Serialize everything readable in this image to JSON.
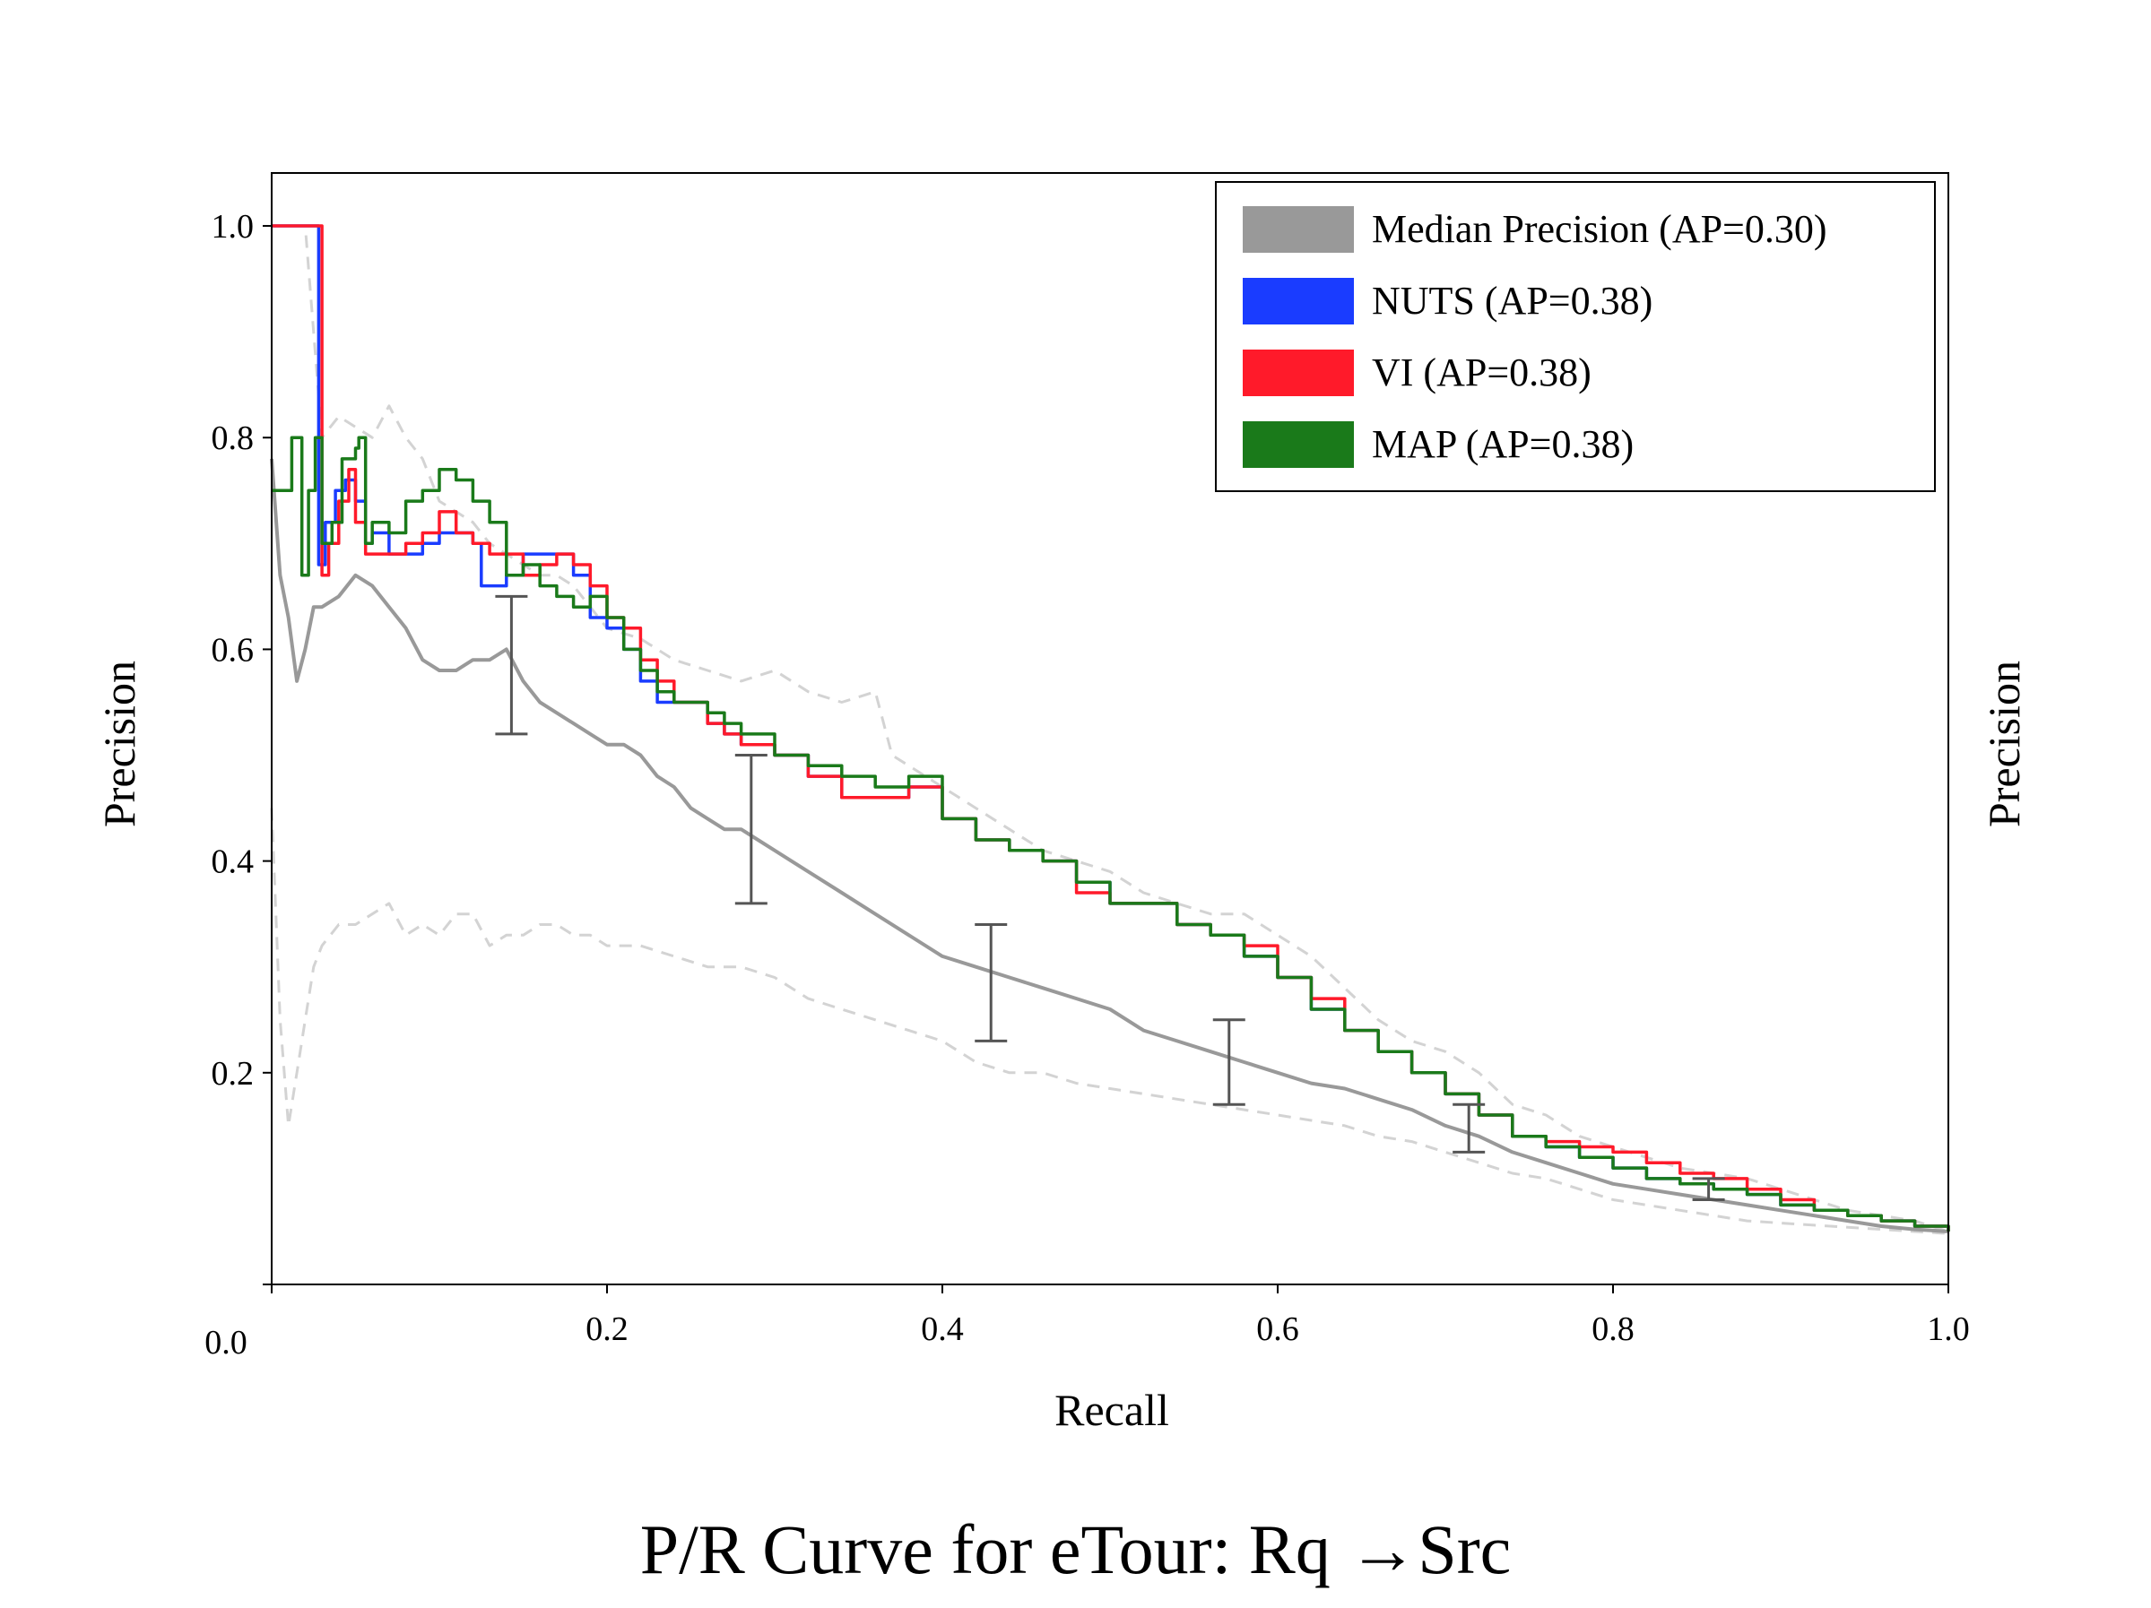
{
  "chart_data": {
    "type": "line",
    "title": "P/R Curve for eTour: Rq →Src",
    "xlabel": "Recall",
    "ylabel": "Precision",
    "ylabel_right": "Precision",
    "xlim": [
      0.0,
      1.0
    ],
    "ylim": [
      0.0,
      1.05
    ],
    "x_ticks": [
      {
        "value": 0.0,
        "label": "0.0"
      },
      {
        "value": 0.2,
        "label": "0.2"
      },
      {
        "value": 0.4,
        "label": "0.4"
      },
      {
        "value": 0.6,
        "label": "0.6"
      },
      {
        "value": 0.8,
        "label": "0.8"
      },
      {
        "value": 1.0,
        "label": "1.0"
      }
    ],
    "y_ticks": [
      {
        "value": 0.2,
        "label": "0.2"
      },
      {
        "value": 0.4,
        "label": "0.4"
      },
      {
        "value": 0.6,
        "label": "0.6"
      },
      {
        "value": 0.8,
        "label": "0.8"
      },
      {
        "value": 1.0,
        "label": "1.0"
      }
    ],
    "grid": false,
    "legend_position": "top-right",
    "series": [
      {
        "name": "Median Precision (AP=0.30)",
        "color": "#999999",
        "style": "solid",
        "x": [
          0.0,
          0.005,
          0.01,
          0.015,
          0.02,
          0.025,
          0.03,
          0.04,
          0.05,
          0.06,
          0.07,
          0.08,
          0.09,
          0.1,
          0.11,
          0.12,
          0.13,
          0.14,
          0.15,
          0.16,
          0.17,
          0.18,
          0.19,
          0.2,
          0.21,
          0.22,
          0.23,
          0.24,
          0.25,
          0.26,
          0.27,
          0.28,
          0.29,
          0.3,
          0.32,
          0.34,
          0.36,
          0.38,
          0.4,
          0.42,
          0.44,
          0.46,
          0.48,
          0.5,
          0.52,
          0.54,
          0.56,
          0.58,
          0.6,
          0.62,
          0.64,
          0.66,
          0.68,
          0.7,
          0.72,
          0.74,
          0.76,
          0.78,
          0.8,
          0.82,
          0.84,
          0.86,
          0.88,
          0.9,
          0.92,
          0.94,
          0.96,
          0.98,
          1.0
        ],
        "y": [
          0.78,
          0.67,
          0.63,
          0.57,
          0.6,
          0.64,
          0.64,
          0.65,
          0.67,
          0.66,
          0.64,
          0.62,
          0.59,
          0.58,
          0.58,
          0.59,
          0.59,
          0.6,
          0.57,
          0.55,
          0.54,
          0.53,
          0.52,
          0.51,
          0.51,
          0.5,
          0.48,
          0.47,
          0.45,
          0.44,
          0.43,
          0.43,
          0.42,
          0.41,
          0.39,
          0.37,
          0.35,
          0.33,
          0.31,
          0.3,
          0.29,
          0.28,
          0.27,
          0.26,
          0.24,
          0.23,
          0.22,
          0.21,
          0.2,
          0.19,
          0.185,
          0.175,
          0.165,
          0.15,
          0.14,
          0.125,
          0.115,
          0.105,
          0.095,
          0.09,
          0.085,
          0.08,
          0.075,
          0.07,
          0.065,
          0.06,
          0.055,
          0.052,
          0.05
        ]
      },
      {
        "name": "NUTS (AP=0.38)",
        "color": "#1a3cff",
        "style": "solid",
        "x": [
          0.0,
          0.012,
          0.024,
          0.028,
          0.032,
          0.038,
          0.044,
          0.05,
          0.056,
          0.06,
          0.07,
          0.08,
          0.09,
          0.1,
          0.11,
          0.12,
          0.125,
          0.13,
          0.14,
          0.15,
          0.16,
          0.17,
          0.18,
          0.19,
          0.2,
          0.21,
          0.22,
          0.23,
          0.24,
          0.26,
          0.27,
          0.28,
          0.3,
          0.32,
          0.34,
          0.36,
          0.38,
          0.4,
          0.42,
          0.44,
          0.46,
          0.48,
          0.5,
          0.52,
          0.54,
          0.56,
          0.58,
          0.6,
          0.62,
          0.64,
          0.66,
          0.68,
          0.7,
          0.72,
          0.74,
          0.76,
          0.78,
          0.8,
          0.82,
          0.84,
          0.86,
          0.88,
          0.9,
          0.92,
          0.94,
          0.96,
          0.98,
          1.0
        ],
        "y": [
          1.0,
          1.0,
          1.0,
          0.68,
          0.72,
          0.75,
          0.76,
          0.74,
          0.7,
          0.71,
          0.69,
          0.69,
          0.7,
          0.71,
          0.71,
          0.7,
          0.66,
          0.66,
          0.67,
          0.69,
          0.69,
          0.69,
          0.67,
          0.63,
          0.62,
          0.6,
          0.57,
          0.55,
          0.55,
          0.53,
          0.52,
          0.51,
          0.5,
          0.48,
          0.46,
          0.46,
          0.47,
          0.44,
          0.42,
          0.41,
          0.4,
          0.38,
          0.36,
          0.36,
          0.34,
          0.33,
          0.31,
          0.29,
          0.26,
          0.24,
          0.22,
          0.2,
          0.18,
          0.16,
          0.14,
          0.13,
          0.12,
          0.11,
          0.1,
          0.095,
          0.09,
          0.085,
          0.075,
          0.07,
          0.065,
          0.06,
          0.055,
          0.05
        ]
      },
      {
        "name": "VI (AP=0.38)",
        "color": "#ff1a2a",
        "style": "solid",
        "x": [
          0.0,
          0.012,
          0.026,
          0.03,
          0.034,
          0.04,
          0.046,
          0.05,
          0.056,
          0.06,
          0.07,
          0.08,
          0.09,
          0.1,
          0.11,
          0.12,
          0.13,
          0.14,
          0.15,
          0.16,
          0.17,
          0.18,
          0.19,
          0.2,
          0.21,
          0.22,
          0.23,
          0.24,
          0.26,
          0.27,
          0.28,
          0.3,
          0.32,
          0.34,
          0.36,
          0.38,
          0.4,
          0.42,
          0.44,
          0.46,
          0.48,
          0.5,
          0.52,
          0.54,
          0.56,
          0.58,
          0.6,
          0.62,
          0.64,
          0.66,
          0.68,
          0.7,
          0.72,
          0.74,
          0.76,
          0.78,
          0.8,
          0.82,
          0.84,
          0.86,
          0.88,
          0.9,
          0.92,
          0.94,
          0.96,
          0.98,
          1.0
        ],
        "y": [
          1.0,
          1.0,
          1.0,
          0.67,
          0.7,
          0.74,
          0.77,
          0.72,
          0.69,
          0.69,
          0.69,
          0.7,
          0.71,
          0.73,
          0.71,
          0.7,
          0.69,
          0.69,
          0.67,
          0.68,
          0.69,
          0.68,
          0.66,
          0.63,
          0.62,
          0.59,
          0.57,
          0.55,
          0.53,
          0.52,
          0.51,
          0.5,
          0.48,
          0.46,
          0.46,
          0.47,
          0.44,
          0.42,
          0.41,
          0.4,
          0.37,
          0.36,
          0.36,
          0.34,
          0.33,
          0.32,
          0.29,
          0.27,
          0.24,
          0.22,
          0.2,
          0.18,
          0.16,
          0.14,
          0.135,
          0.13,
          0.125,
          0.115,
          0.105,
          0.1,
          0.09,
          0.08,
          0.07,
          0.065,
          0.06,
          0.055,
          0.05
        ]
      },
      {
        "name": "MAP (AP=0.38)",
        "color": "#1a7a1a",
        "style": "solid",
        "x": [
          0.0,
          0.008,
          0.012,
          0.018,
          0.022,
          0.026,
          0.03,
          0.036,
          0.042,
          0.05,
          0.052,
          0.056,
          0.06,
          0.07,
          0.08,
          0.09,
          0.1,
          0.11,
          0.12,
          0.13,
          0.14,
          0.15,
          0.16,
          0.17,
          0.18,
          0.19,
          0.2,
          0.21,
          0.22,
          0.23,
          0.24,
          0.26,
          0.27,
          0.28,
          0.3,
          0.32,
          0.34,
          0.36,
          0.38,
          0.4,
          0.42,
          0.44,
          0.46,
          0.48,
          0.5,
          0.52,
          0.54,
          0.56,
          0.58,
          0.6,
          0.62,
          0.64,
          0.66,
          0.68,
          0.7,
          0.72,
          0.74,
          0.76,
          0.78,
          0.8,
          0.82,
          0.84,
          0.86,
          0.88,
          0.9,
          0.92,
          0.94,
          0.96,
          0.98,
          1.0
        ],
        "y": [
          0.75,
          0.75,
          0.8,
          0.67,
          0.75,
          0.8,
          0.7,
          0.72,
          0.78,
          0.79,
          0.8,
          0.7,
          0.72,
          0.71,
          0.74,
          0.75,
          0.77,
          0.76,
          0.74,
          0.72,
          0.67,
          0.68,
          0.66,
          0.65,
          0.64,
          0.65,
          0.63,
          0.6,
          0.58,
          0.56,
          0.55,
          0.54,
          0.53,
          0.52,
          0.5,
          0.49,
          0.48,
          0.47,
          0.48,
          0.44,
          0.42,
          0.41,
          0.4,
          0.38,
          0.36,
          0.36,
          0.34,
          0.33,
          0.31,
          0.29,
          0.26,
          0.24,
          0.22,
          0.2,
          0.18,
          0.16,
          0.14,
          0.13,
          0.12,
          0.11,
          0.1,
          0.095,
          0.09,
          0.085,
          0.075,
          0.07,
          0.065,
          0.06,
          0.055,
          0.05
        ]
      },
      {
        "name": "",
        "color": "#d3d3d3",
        "style": "dashed",
        "x": [
          0.0,
          0.005,
          0.01,
          0.015,
          0.02,
          0.03,
          0.04,
          0.05,
          0.06,
          0.07,
          0.08,
          0.09,
          0.1,
          0.11,
          0.12,
          0.13,
          0.14,
          0.15,
          0.16,
          0.17,
          0.18,
          0.19,
          0.2,
          0.22,
          0.24,
          0.26,
          0.28,
          0.3,
          0.32,
          0.34,
          0.36,
          0.37,
          0.38,
          0.4,
          0.42,
          0.44,
          0.46,
          0.48,
          0.5,
          0.52,
          0.54,
          0.56,
          0.58,
          0.6,
          0.62,
          0.64,
          0.66,
          0.68,
          0.7,
          0.72,
          0.74,
          0.76,
          0.78,
          0.8,
          0.82,
          0.84,
          0.86,
          0.88,
          0.9,
          0.92,
          0.94,
          0.96,
          0.98,
          1.0
        ],
        "y": [
          1.0,
          1.0,
          1.0,
          1.0,
          1.0,
          0.8,
          0.82,
          0.81,
          0.8,
          0.83,
          0.8,
          0.78,
          0.74,
          0.73,
          0.72,
          0.7,
          0.69,
          0.68,
          0.67,
          0.67,
          0.66,
          0.64,
          0.62,
          0.61,
          0.59,
          0.58,
          0.57,
          0.58,
          0.56,
          0.55,
          0.56,
          0.5,
          0.49,
          0.47,
          0.45,
          0.43,
          0.41,
          0.4,
          0.39,
          0.37,
          0.36,
          0.35,
          0.35,
          0.33,
          0.31,
          0.28,
          0.25,
          0.23,
          0.22,
          0.2,
          0.17,
          0.16,
          0.14,
          0.13,
          0.12,
          0.11,
          0.105,
          0.1,
          0.09,
          0.08,
          0.07,
          0.065,
          0.06,
          0.05
        ]
      },
      {
        "name": "",
        "color": "#d3d3d3",
        "style": "dashed",
        "x": [
          0.0,
          0.005,
          0.01,
          0.015,
          0.02,
          0.025,
          0.03,
          0.04,
          0.05,
          0.06,
          0.07,
          0.08,
          0.09,
          0.1,
          0.11,
          0.12,
          0.13,
          0.14,
          0.15,
          0.16,
          0.17,
          0.18,
          0.19,
          0.2,
          0.22,
          0.24,
          0.26,
          0.28,
          0.3,
          0.32,
          0.34,
          0.36,
          0.38,
          0.4,
          0.42,
          0.44,
          0.46,
          0.48,
          0.5,
          0.52,
          0.54,
          0.56,
          0.58,
          0.6,
          0.62,
          0.64,
          0.66,
          0.68,
          0.7,
          0.72,
          0.74,
          0.76,
          0.78,
          0.8,
          0.82,
          0.84,
          0.86,
          0.88,
          0.9,
          0.92,
          0.94,
          0.96,
          0.98,
          1.0
        ],
        "y": [
          0.45,
          0.25,
          0.15,
          0.2,
          0.25,
          0.3,
          0.32,
          0.34,
          0.34,
          0.35,
          0.36,
          0.33,
          0.34,
          0.33,
          0.35,
          0.35,
          0.32,
          0.33,
          0.33,
          0.34,
          0.34,
          0.33,
          0.33,
          0.32,
          0.32,
          0.31,
          0.3,
          0.3,
          0.29,
          0.27,
          0.26,
          0.25,
          0.24,
          0.23,
          0.21,
          0.2,
          0.2,
          0.19,
          0.185,
          0.18,
          0.175,
          0.17,
          0.165,
          0.16,
          0.155,
          0.15,
          0.14,
          0.135,
          0.125,
          0.115,
          0.105,
          0.1,
          0.09,
          0.08,
          0.075,
          0.07,
          0.065,
          0.06,
          0.058,
          0.056,
          0.054,
          0.052,
          0.05,
          0.048
        ]
      }
    ],
    "error_bars": [
      {
        "x": 0.143,
        "low": 0.52,
        "high": 0.65
      },
      {
        "x": 0.286,
        "low": 0.36,
        "high": 0.5
      },
      {
        "x": 0.429,
        "low": 0.23,
        "high": 0.34
      },
      {
        "x": 0.571,
        "low": 0.17,
        "high": 0.25
      },
      {
        "x": 0.714,
        "low": 0.125,
        "high": 0.17
      },
      {
        "x": 0.857,
        "low": 0.08,
        "high": 0.1
      }
    ]
  }
}
